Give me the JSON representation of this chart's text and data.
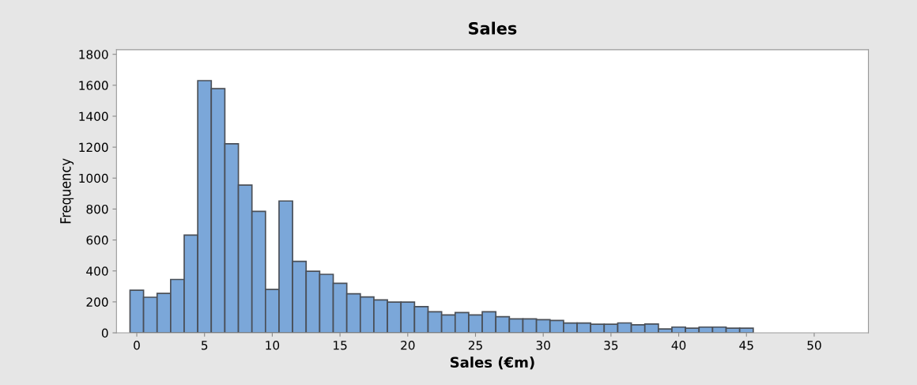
{
  "chart_data": {
    "type": "histogram",
    "title": "Sales",
    "xlabel": "Sales (€m)",
    "ylabel": "Frequency",
    "bins": [
      -0.5,
      0.5,
      1.5,
      2.5,
      3.5,
      4.5,
      5.5,
      6.5,
      7.5,
      8.5,
      9.5,
      10.5,
      11.5,
      12.5,
      13.5,
      14.5,
      15.5,
      16.5,
      17.5,
      18.5,
      19.5,
      20.5,
      21.5,
      22.5,
      23.5,
      24.5,
      25.5,
      26.5,
      27.5,
      28.5,
      29.5,
      30.5,
      31.5,
      32.5,
      33.5,
      34.5,
      35.5,
      36.5,
      37.5,
      38.5,
      39.5,
      40.5,
      41.5,
      42.5,
      43.5,
      44.5,
      45.5,
      46.5,
      47.5,
      48.5,
      49.5,
      50.5,
      51.5,
      52.5,
      53.5
    ],
    "values": [
      275,
      230,
      255,
      345,
      632,
      1630,
      1578,
      1222,
      955,
      785,
      280,
      852,
      462,
      398,
      378,
      320,
      252,
      232,
      213,
      199,
      199,
      169,
      136,
      116,
      131,
      116,
      136,
      104,
      90,
      90,
      85,
      80,
      63,
      63,
      56,
      56,
      64,
      52,
      57,
      25,
      37,
      30,
      37,
      37,
      30,
      30,
      0,
      0,
      0,
      0,
      0,
      0,
      0,
      0
    ],
    "color": "#7ba7d9",
    "xlim": [
      -1.5,
      54
    ],
    "ylim": [
      0,
      1830
    ],
    "xticks": [
      0,
      5,
      10,
      15,
      20,
      25,
      30,
      35,
      40,
      45,
      50
    ],
    "yticks": [
      0,
      200,
      400,
      600,
      800,
      1000,
      1200,
      1400,
      1600,
      1800
    ],
    "grid": false
  }
}
